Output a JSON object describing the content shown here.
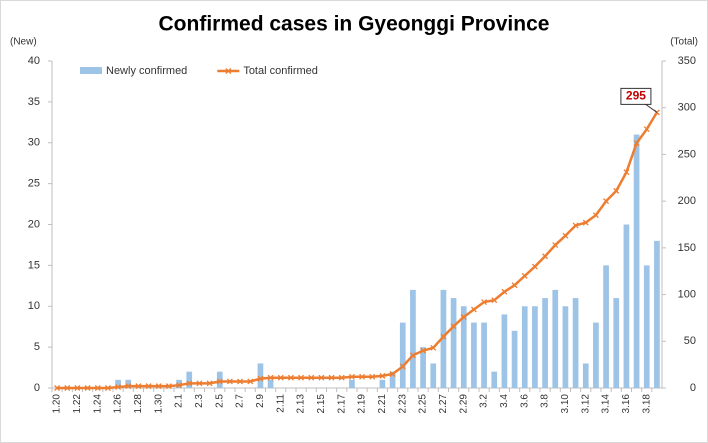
{
  "chart_data": {
    "type": "bar-line",
    "title": "Confirmed cases in Gyeonggi Province",
    "y_label": "(New)",
    "y2_label": "(Total)",
    "categories": [
      "1.20",
      null,
      "1.22",
      null,
      "1.24",
      null,
      "1.26",
      null,
      "1.28",
      null,
      "1.30",
      null,
      "2.1",
      null,
      "2.3",
      null,
      "2.5",
      null,
      "2.7",
      null,
      "2.9",
      null,
      "2.11",
      null,
      "2.13",
      null,
      "2.15",
      null,
      "2.17",
      null,
      "2.19",
      null,
      "2.21",
      null,
      "2.23",
      null,
      "2.25",
      null,
      "2.27",
      null,
      "2.29",
      null,
      "3.2",
      null,
      "3.4",
      null,
      "3.6",
      null,
      "3.8",
      null,
      "3.10",
      null,
      "3.12",
      null,
      "3.14",
      null,
      "3.16",
      null,
      "3.18",
      null
    ],
    "series": [
      {
        "name": "Newly confirmed",
        "type": "bar",
        "axis": "y",
        "color": "#9dc3e6",
        "values": [
          0,
          0,
          0,
          0,
          0,
          0,
          1,
          1,
          0,
          0,
          0,
          0,
          1,
          2,
          0,
          0,
          2,
          0,
          0,
          0,
          3,
          1,
          0,
          0,
          0,
          0,
          0,
          0,
          0,
          1,
          0,
          0,
          1,
          2,
          8,
          12,
          5,
          3,
          12,
          11,
          10,
          8,
          8,
          2,
          9,
          7,
          10,
          10,
          11,
          12,
          10,
          11,
          3,
          8,
          15,
          11,
          20,
          31,
          15,
          18
        ]
      },
      {
        "name": "Total confirmed",
        "type": "line",
        "axis": "y2",
        "color": "#ed7d31",
        "values": [
          0,
          0,
          0,
          0,
          0,
          0,
          1,
          2,
          2,
          2,
          2,
          2,
          3,
          5,
          5,
          5,
          7,
          7,
          7,
          7,
          10,
          11,
          11,
          11,
          11,
          11,
          11,
          11,
          11,
          12,
          12,
          12,
          13,
          15,
          23,
          35,
          40,
          43,
          55,
          66,
          76,
          84,
          92,
          94,
          103,
          110,
          120,
          130,
          141,
          153,
          163,
          174,
          177,
          185,
          200,
          211,
          231,
          262,
          277,
          295
        ]
      }
    ],
    "ylim": [
      0,
      40
    ],
    "yticks": [
      0,
      5,
      10,
      15,
      20,
      25,
      30,
      35,
      40
    ],
    "y2lim": [
      0,
      350
    ],
    "y2ticks": [
      0,
      50,
      100,
      150,
      200,
      250,
      300,
      350
    ],
    "legend": "top-left"
  }
}
